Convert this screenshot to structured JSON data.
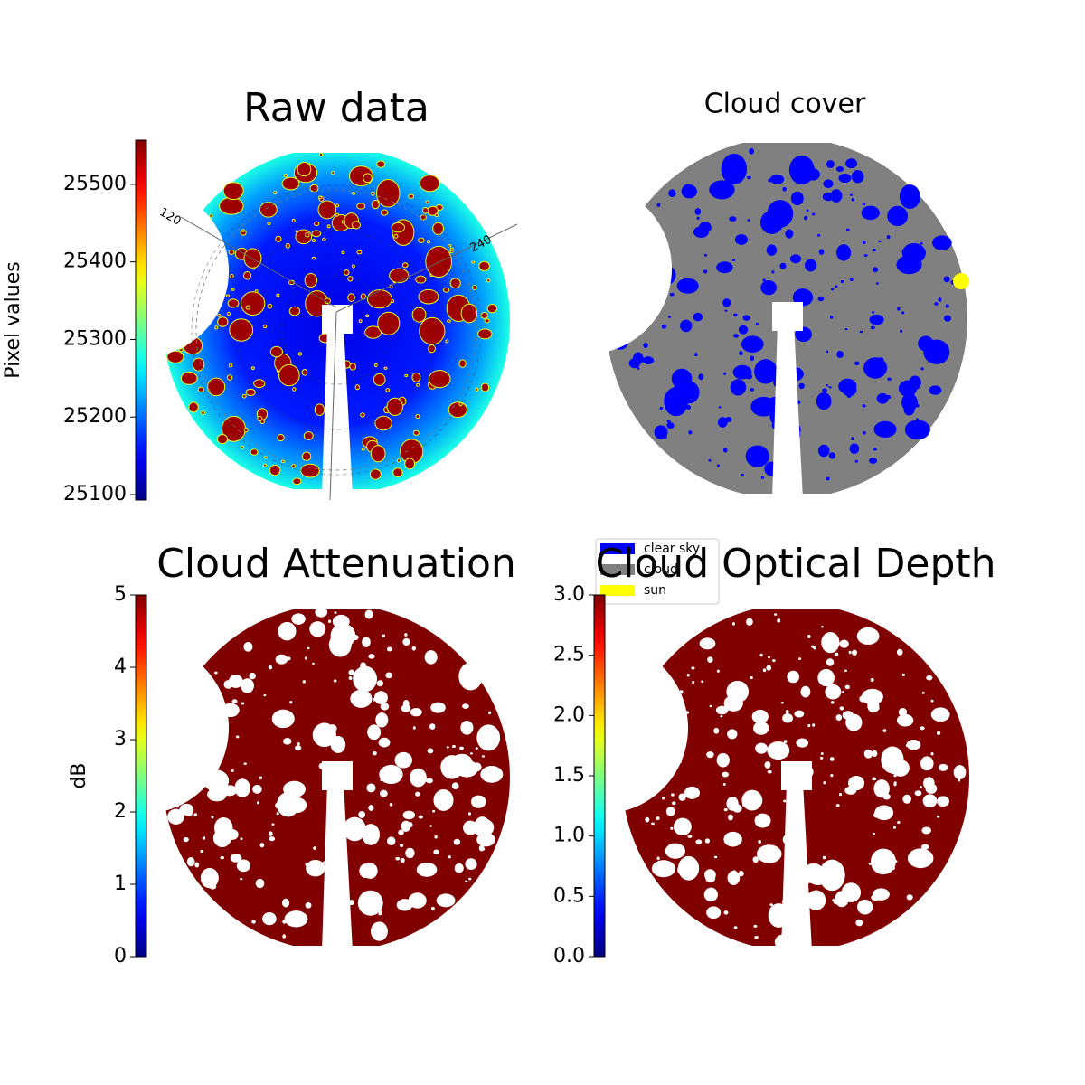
{
  "chart_data": [
    {
      "type": "image",
      "title": "Raw data",
      "colorbar_label": "Pixel values",
      "colormap": "jet",
      "ylim": [
        25093,
        25557
      ],
      "yticks": [
        25100,
        25200,
        25300,
        25400,
        25500
      ],
      "annotations": [
        "120",
        "240"
      ]
    },
    {
      "type": "image",
      "title": "Cloud cover",
      "series": [
        {
          "name": "clear sky",
          "color": "#0000ff"
        },
        {
          "name": "cloud",
          "color": "#808080"
        },
        {
          "name": "sun",
          "color": "#ffff00"
        }
      ]
    },
    {
      "type": "image",
      "title": "Cloud Attenuation",
      "colorbar_label": "dB",
      "colormap": "jet",
      "ylim": [
        0,
        5
      ],
      "yticks": [
        0,
        1,
        2,
        3,
        4,
        5
      ]
    },
    {
      "type": "image",
      "title": "Cloud Optical Depth",
      "colormap": "jet",
      "ylim": [
        0,
        3
      ],
      "yticks": [
        {
          "value": 0,
          "label": "0.0"
        },
        {
          "value": 0.5,
          "label": "0.5"
        },
        {
          "value": 1,
          "label": "1.0"
        },
        {
          "value": 1.5,
          "label": "1.5"
        },
        {
          "value": 2,
          "label": "2.0"
        },
        {
          "value": 2.5,
          "label": "2.5"
        },
        {
          "value": 3,
          "label": "3.0"
        }
      ]
    }
  ]
}
